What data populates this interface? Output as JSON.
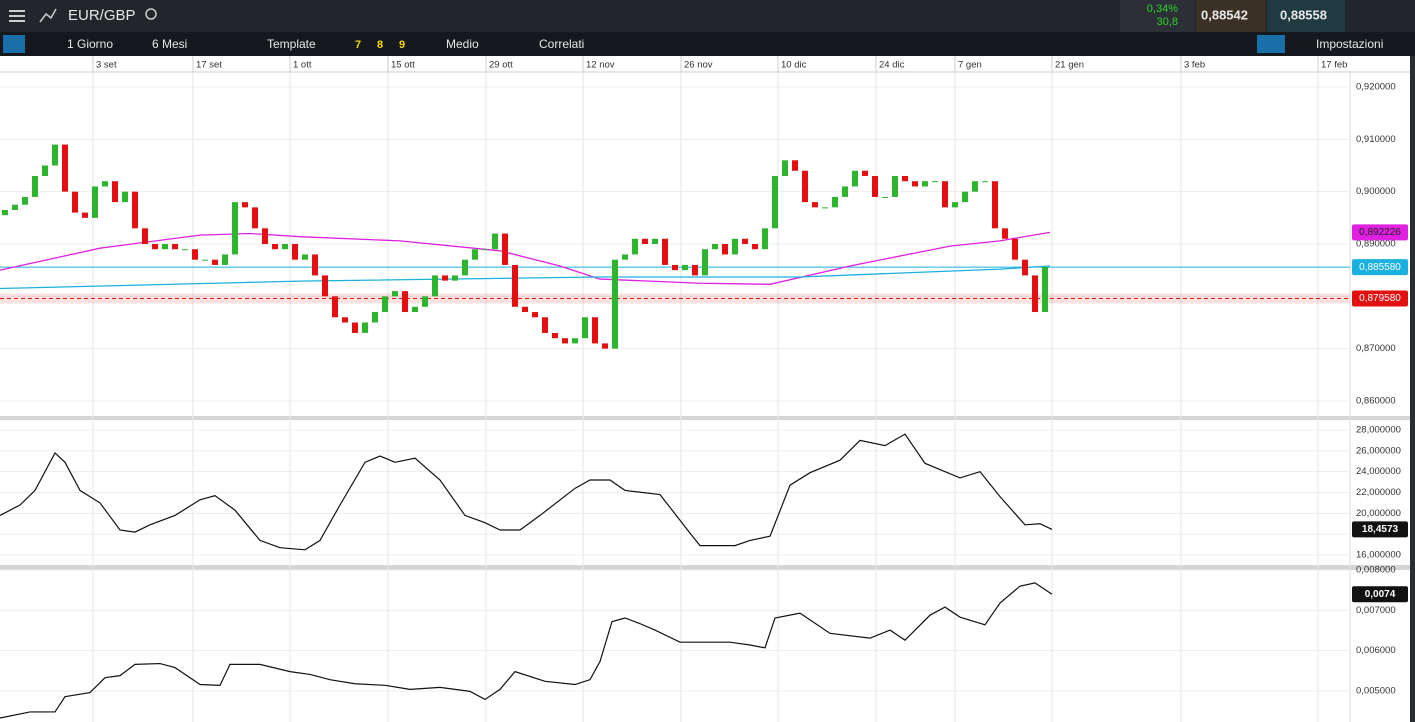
{
  "toolbar": {
    "symbol": "EUR/GBP",
    "change": "0,34%",
    "pips": "30,8",
    "sell": "0,88542",
    "buy": "0,88558",
    "period": "1 Giorno",
    "range": "6 Mesi",
    "template": "Template",
    "presets": [
      "7",
      "8",
      "9"
    ],
    "style": "Medio",
    "related": "Correlati",
    "settings": "Impostazioni"
  },
  "chart_data": [
    {
      "type": "candlestick",
      "xlim": [
        -0.5,
        134.5
      ],
      "ylim": [
        0.85713,
        0.92287
      ],
      "xticks": [
        {
          "value": 8.8,
          "label": "3 set"
        },
        {
          "value": 18.8,
          "label": "17 set"
        },
        {
          "value": 28.5,
          "label": "1 ott"
        },
        {
          "value": 38.3,
          "label": "15 ott"
        },
        {
          "value": 48.1,
          "label": "29 ott"
        },
        {
          "value": 57.8,
          "label": "12 nov"
        },
        {
          "value": 67.6,
          "label": "26 nov"
        },
        {
          "value": 77.3,
          "label": "10 dic"
        },
        {
          "value": 87.1,
          "label": "24 dic"
        },
        {
          "value": 95,
          "label": "7 gen"
        },
        {
          "value": 104.7,
          "label": "21 gen"
        },
        {
          "value": 117.6,
          "label": "3 feb"
        },
        {
          "value": 131.3,
          "label": "17 feb"
        }
      ],
      "yticks": [
        {
          "value": 0.86,
          "label": "0,860000"
        },
        {
          "value": 0.87,
          "label": "0,870000"
        },
        {
          "value": 0.88,
          "label": "0,880000"
        },
        {
          "value": 0.89,
          "label": "0,890000"
        },
        {
          "value": 0.9,
          "label": "0,900000"
        },
        {
          "value": 0.91,
          "label": "0,910000"
        },
        {
          "value": 0.92,
          "label": "0,920000"
        }
      ],
      "up_color": "#2db52d",
      "down_color": "#e21010",
      "open": [
        0.8955,
        0.8965,
        0.8975,
        0.899,
        0.903,
        0.905,
        0.909,
        0.9,
        0.896,
        0.895,
        0.901,
        0.902,
        0.898,
        0.9,
        0.893,
        0.89,
        0.889,
        0.89,
        0.889,
        0.889,
        0.887,
        0.887,
        0.886,
        0.888,
        0.898,
        0.897,
        0.893,
        0.89,
        0.889,
        0.89,
        0.887,
        0.888,
        0.884,
        0.88,
        0.876,
        0.875,
        0.873,
        0.875,
        0.877,
        0.88,
        0.881,
        0.877,
        0.878,
        0.88,
        0.884,
        0.883,
        0.884,
        0.887,
        0.889,
        0.889,
        0.892,
        0.886,
        0.878,
        0.877,
        0.876,
        0.873,
        0.872,
        0.871,
        0.872,
        0.876,
        0.871,
        0.87,
        0.887,
        0.888,
        0.891,
        0.89,
        0.891,
        0.886,
        0.885,
        0.886,
        0.884,
        0.889,
        0.89,
        0.888,
        0.891,
        0.89,
        0.889,
        0.893,
        0.903,
        0.906,
        0.904,
        0.898,
        0.897,
        0.897,
        0.899,
        0.901,
        0.904,
        0.903,
        0.899,
        0.899,
        0.903,
        0.902,
        0.901,
        0.902,
        0.902,
        0.897,
        0.898,
        0.9,
        0.902,
        0.902,
        0.893,
        0.891,
        0.887,
        0.884,
        0.877
      ],
      "close": [
        0.8965,
        0.8975,
        0.899,
        0.903,
        0.905,
        0.909,
        0.9,
        0.896,
        0.895,
        0.901,
        0.902,
        0.898,
        0.9,
        0.893,
        0.89,
        0.889,
        0.89,
        0.889,
        0.889,
        0.887,
        0.887,
        0.886,
        0.888,
        0.898,
        0.897,
        0.893,
        0.89,
        0.889,
        0.89,
        0.887,
        0.888,
        0.884,
        0.88,
        0.876,
        0.875,
        0.873,
        0.875,
        0.877,
        0.88,
        0.881,
        0.877,
        0.878,
        0.88,
        0.884,
        0.883,
        0.884,
        0.887,
        0.889,
        0.889,
        0.892,
        0.886,
        0.878,
        0.877,
        0.876,
        0.873,
        0.872,
        0.871,
        0.872,
        0.876,
        0.871,
        0.87,
        0.887,
        0.888,
        0.891,
        0.89,
        0.891,
        0.886,
        0.885,
        0.886,
        0.884,
        0.889,
        0.89,
        0.888,
        0.891,
        0.89,
        0.889,
        0.893,
        0.903,
        0.906,
        0.904,
        0.898,
        0.897,
        0.897,
        0.899,
        0.901,
        0.904,
        0.903,
        0.899,
        0.899,
        0.903,
        0.902,
        0.901,
        0.902,
        0.902,
        0.897,
        0.898,
        0.9,
        0.902,
        0.902,
        0.893,
        0.891,
        0.887,
        0.884,
        0.877,
        0.8856
      ],
      "overlays": [
        {
          "color": "#e020e0",
          "x": [
            -0.5,
            9.5,
            19.5,
            24.5,
            29.5,
            39.5,
            49.5,
            55.5,
            59.5,
            69.5,
            76.5,
            84.5,
            94.5,
            99.5,
            104.5
          ],
          "values": [
            0.885,
            0.8892,
            0.8917,
            0.892,
            0.8914,
            0.8906,
            0.8887,
            0.8858,
            0.8833,
            0.8825,
            0.8823,
            0.8858,
            0.8896,
            0.8906,
            0.892226
          ],
          "last_label": "0,892226"
        },
        {
          "color": "#1ab0e0",
          "x": [
            -0.5,
            29.5,
            59.5,
            79.5,
            99.5,
            104.5
          ],
          "values": [
            0.8815,
            0.8829,
            0.8837,
            0.8837,
            0.8852,
            0.8858
          ]
        }
      ],
      "hlines": [
        {
          "value": 0.88558,
          "label": "0,885580",
          "color": "#1ab0e0"
        },
        {
          "value": 0.87958,
          "label": "0,879580",
          "color": "#e21010"
        }
      ]
    },
    {
      "type": "line",
      "xlim": [
        -0.5,
        134.5
      ],
      "ylim": [
        15.04,
        28.96
      ],
      "color": "#111111",
      "yticks": [
        {
          "value": 16,
          "label": "16,000000"
        },
        {
          "value": 18,
          "label": "18,000000"
        },
        {
          "value": 20,
          "label": "20,000000"
        },
        {
          "value": 22,
          "label": "22,000000"
        },
        {
          "value": 24,
          "label": "24,000000"
        },
        {
          "value": 26,
          "label": "26,000000"
        },
        {
          "value": 28,
          "label": "28,000000"
        }
      ],
      "x": [
        -0.5,
        1.5,
        3,
        5,
        6,
        7.5,
        9.5,
        11.5,
        13,
        14.5,
        17,
        19.5,
        21,
        23,
        25.5,
        27.5,
        30,
        31.5,
        33.5,
        36,
        37.5,
        39,
        41,
        43.5,
        46,
        48,
        49.5,
        51.5,
        53.5,
        57,
        58.5,
        60.5,
        62,
        65.5,
        68.5,
        69.5,
        73,
        74.5,
        76.5,
        78.5,
        80.5,
        83.5,
        85.5,
        88,
        90,
        92,
        95.5,
        97.5,
        99.5,
        102,
        103.5,
        104.7
      ],
      "values": [
        19.8,
        20.8,
        22.2,
        25.8,
        24.9,
        22.2,
        21,
        18.4,
        18.2,
        18.9,
        19.8,
        21.3,
        21.7,
        20.3,
        17.4,
        16.7,
        16.5,
        17.4,
        20.8,
        24.9,
        25.5,
        24.9,
        25.3,
        23.2,
        19.8,
        19.1,
        18.4,
        18.4,
        19.8,
        22.4,
        23.2,
        23.2,
        22.2,
        21.8,
        18.1,
        16.9,
        16.9,
        17.4,
        17.8,
        22.7,
        23.9,
        25.1,
        27,
        26.5,
        27.6,
        24.8,
        23.4,
        24,
        21.6,
        18.9,
        19,
        18.4573
      ],
      "last_label": "18,4573"
    },
    {
      "type": "line",
      "xlim": [
        -0.5,
        134.5
      ],
      "ylim": [
        0.00433,
        0.008
      ],
      "color": "#111111",
      "yticks": [
        {
          "value": 0.005,
          "label": "0,005000"
        },
        {
          "value": 0.006,
          "label": "0,006000"
        },
        {
          "value": 0.007,
          "label": "0,007000"
        },
        {
          "value": 0.008,
          "label": "0,008000"
        }
      ],
      "x": [
        -0.5,
        2.5,
        5,
        6,
        8.5,
        10,
        11.5,
        13,
        15.5,
        17,
        19.5,
        21.5,
        22.5,
        25.5,
        28.5,
        30.5,
        32.5,
        35,
        38,
        40.5,
        43.5,
        46.5,
        48,
        49.5,
        51,
        54,
        57,
        58.5,
        59.5,
        60.7,
        62,
        63.5,
        65,
        67.5,
        72.5,
        74.5,
        76,
        77,
        79.5,
        82.5,
        86.5,
        88.5,
        90,
        92.5,
        94,
        95.5,
        98,
        99.5,
        101.5,
        103,
        104.7
      ],
      "values": [
        0.00433,
        0.00448,
        0.00448,
        0.00486,
        0.00496,
        0.00533,
        0.00538,
        0.00566,
        0.00568,
        0.00558,
        0.00516,
        0.00514,
        0.00566,
        0.00566,
        0.00548,
        0.00541,
        0.00528,
        0.00518,
        0.00514,
        0.00504,
        0.00509,
        0.00499,
        0.00479,
        0.00504,
        0.00548,
        0.00524,
        0.00516,
        0.00528,
        0.00573,
        0.00672,
        0.00681,
        0.00667,
        0.00651,
        0.00621,
        0.00621,
        0.00614,
        0.00607,
        0.00681,
        0.00693,
        0.00643,
        0.00631,
        0.00651,
        0.00626,
        0.00688,
        0.00708,
        0.00683,
        0.00664,
        0.00718,
        0.0076,
        0.00768,
        0.0074
      ],
      "last_label": "0,0074"
    }
  ]
}
